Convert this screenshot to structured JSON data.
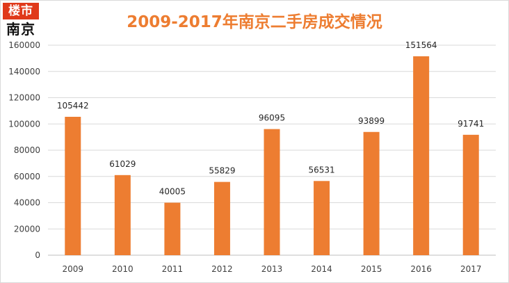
{
  "logo": {
    "top_text": "楼市",
    "bottom_text": "南京"
  },
  "colors": {
    "bar": "#ed7d31",
    "title": "#ed7d31",
    "grid": "#d9d9d9",
    "axis": "#bfbfbf"
  },
  "chart_data": {
    "type": "bar",
    "title": "2009-2017年南京二手房成交情况",
    "xlabel": "",
    "ylabel": "",
    "categories": [
      "2009",
      "2010",
      "2011",
      "2012",
      "2013",
      "2014",
      "2015",
      "2016",
      "2017"
    ],
    "values": [
      105442,
      61029,
      40005,
      55829,
      96095,
      56531,
      93899,
      151564,
      91741
    ],
    "ylim": [
      0,
      160000
    ],
    "yticks": [
      0,
      20000,
      40000,
      60000,
      80000,
      100000,
      120000,
      140000,
      160000
    ],
    "grid": true,
    "legend": "none",
    "data_labels": true
  }
}
